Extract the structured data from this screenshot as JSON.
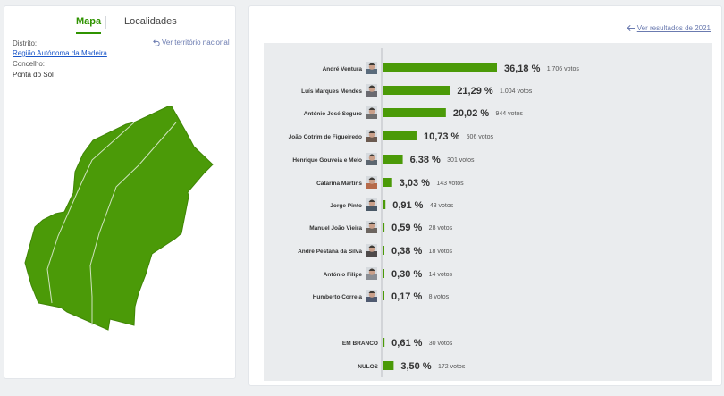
{
  "tabs": {
    "map": "Mapa",
    "places": "Localidades"
  },
  "location": {
    "district_label": "Distrito:",
    "district_value": "Região Autónoma da Madeira",
    "county_label": "Concelho:",
    "county_value": "Ponta do Sol",
    "national_link": "Ver território nacional"
  },
  "previous_results_link": "Ver resultados de 2021",
  "colors": {
    "accent": "#2f9300",
    "map_fill": "#4b9a08",
    "bar": "#4b9a08"
  },
  "chart_data": {
    "type": "bar",
    "orientation": "horizontal",
    "categories": [
      "André Ventura",
      "Luís Marques Mendes",
      "António José Seguro",
      "João Cotrim de Figueiredo",
      "Henrique Gouveia e Melo",
      "Catarina Martins",
      "Jorge Pinto",
      "Manuel João Vieira",
      "André Pestana da Silva",
      "António Filipe",
      "Humberto Correia",
      "EM BRANCO",
      "NULOS"
    ],
    "values": [
      36.18,
      21.29,
      20.02,
      10.73,
      6.38,
      3.03,
      0.91,
      0.59,
      0.38,
      0.3,
      0.17,
      0.61,
      3.5
    ],
    "percent_labels": [
      "36,18 %",
      "21,29 %",
      "20,02 %",
      "10,73 %",
      "6,38 %",
      "3,03 %",
      "0,91 %",
      "0,59 %",
      "0,38 %",
      "0,30 %",
      "0,17 %",
      "0,61 %",
      "3,50 %"
    ],
    "vote_labels": [
      "1.706 votos",
      "1.004 votos",
      "944 votos",
      "506 votos",
      "301 votos",
      "143 votos",
      "43 votos",
      "28 votos",
      "18 votos",
      "14 votos",
      "8 votos",
      "30 votos",
      "172 votos"
    ],
    "has_photo": [
      true,
      true,
      true,
      true,
      true,
      true,
      true,
      true,
      true,
      true,
      true,
      false,
      false
    ],
    "photo_colors": [
      "#5a6b7c",
      "#6a6a70",
      "#707070",
      "#6b5a50",
      "#5c6670",
      "#b66a4a",
      "#4a5866",
      "#6c6560",
      "#4e4a4a",
      "#8b8f95",
      "#4f5a70",
      "",
      ""
    ],
    "unit": "%",
    "xlim": [
      0,
      40
    ]
  }
}
